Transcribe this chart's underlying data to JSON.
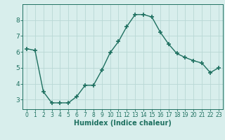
{
  "x": [
    0,
    1,
    2,
    3,
    4,
    5,
    6,
    7,
    8,
    9,
    10,
    11,
    12,
    13,
    14,
    15,
    16,
    17,
    18,
    19,
    20,
    21,
    22,
    23
  ],
  "y": [
    6.2,
    6.1,
    3.5,
    2.8,
    2.8,
    2.8,
    3.2,
    3.9,
    3.9,
    4.85,
    5.95,
    6.65,
    7.6,
    8.35,
    8.35,
    8.2,
    7.25,
    6.5,
    5.9,
    5.65,
    5.45,
    5.3,
    4.7,
    5.0
  ],
  "line_color": "#1e7060",
  "marker": "+",
  "marker_size": 4,
  "marker_linewidth": 1.2,
  "line_width": 1.0,
  "xlabel": "Humidex (Indice chaleur)",
  "xlabel_fontsize": 7,
  "background_color": "#d8eeec",
  "grid_color": "#b8d8d5",
  "tick_color": "#1e7060",
  "spine_color": "#1e7060",
  "ylim": [
    2.4,
    9.0
  ],
  "xlim": [
    -0.5,
    23.5
  ],
  "yticks": [
    3,
    4,
    5,
    6,
    7,
    8
  ],
  "xticks": [
    0,
    1,
    2,
    3,
    4,
    5,
    6,
    7,
    8,
    9,
    10,
    11,
    12,
    13,
    14,
    15,
    16,
    17,
    18,
    19,
    20,
    21,
    22,
    23
  ],
  "ytick_fontsize": 6.5,
  "xtick_fontsize": 5.5
}
